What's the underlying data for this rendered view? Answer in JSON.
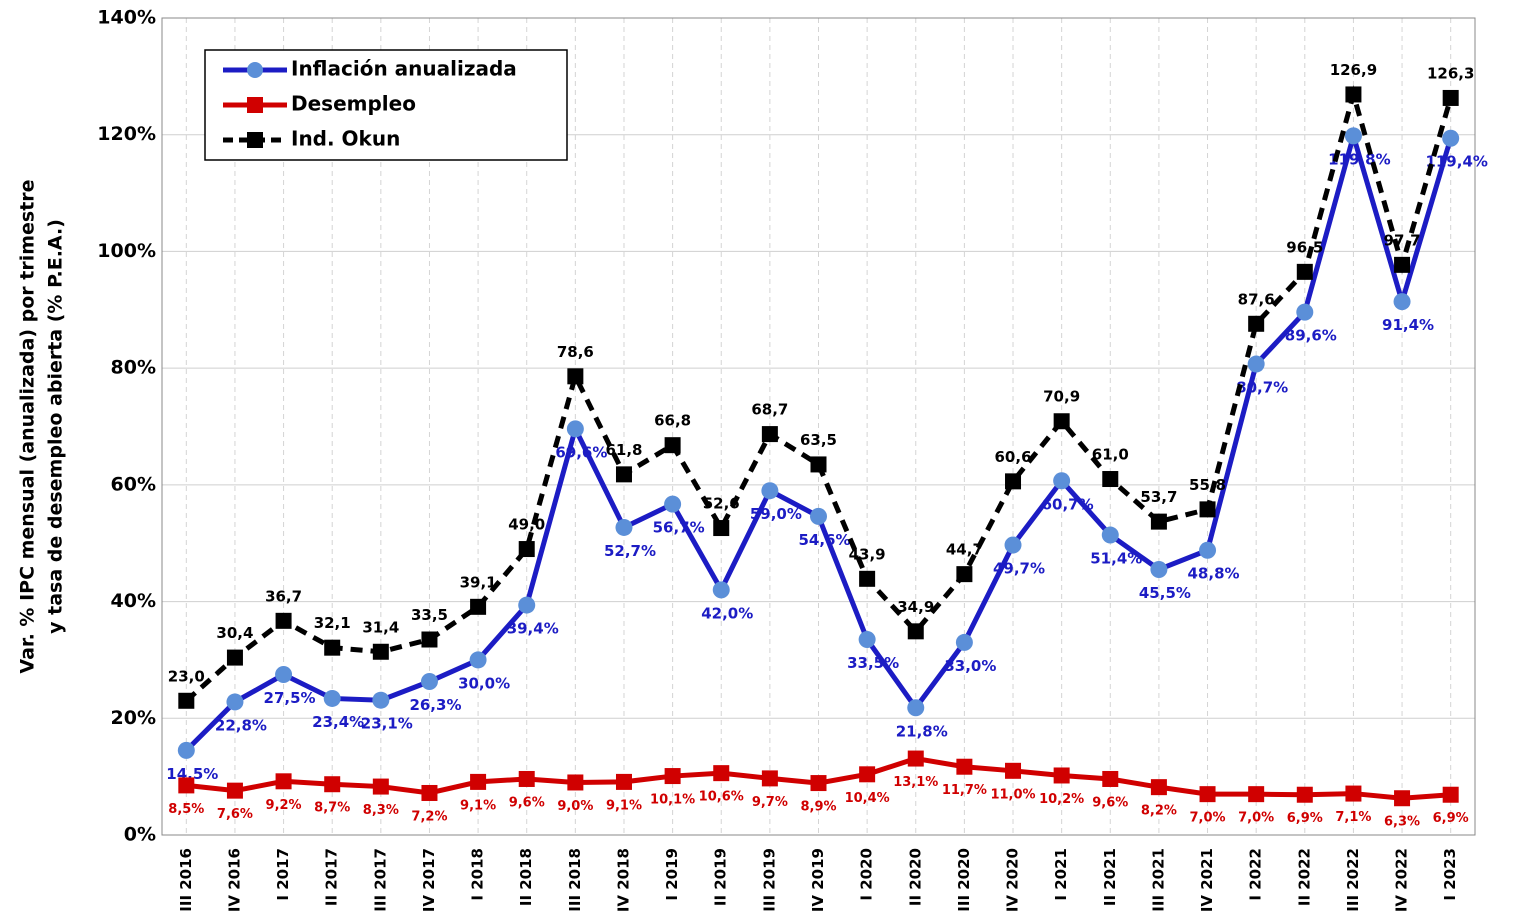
{
  "chart_data": {
    "type": "line",
    "y_label": [
      "Var. % IPC mensual (anualizada) por trimestre",
      "y tasa de desempleo abierta (% P.E.A.)"
    ],
    "categories": [
      "III 2016",
      "IV 2016",
      "I 2017",
      "II 2017",
      "III 2017",
      "IV 2017",
      "I 2018",
      "II 2018",
      "III 2018",
      "IV 2018",
      "I 2019",
      "II 2019",
      "III 2019",
      "IV 2019",
      "I 2020",
      "II 2020",
      "III 2020",
      "IV 2020",
      "I 2021",
      "II 2021",
      "III 2021",
      "IV 2021",
      "I 2022",
      "II 2022",
      "III 2022",
      "IV 2022",
      "I 2023"
    ],
    "series": [
      {
        "name": "Inflación anualizada",
        "color": "#1c1cc4",
        "marker_color": "#5b8fd8",
        "marker": "circle",
        "dashed": false,
        "label_position": "below",
        "values": [
          14.5,
          22.8,
          27.5,
          23.4,
          23.1,
          26.3,
          30.0,
          39.4,
          69.6,
          52.7,
          56.7,
          42.0,
          59.0,
          54.6,
          33.5,
          21.8,
          33.0,
          49.7,
          60.7,
          51.4,
          45.5,
          48.8,
          80.7,
          89.6,
          119.8,
          91.4,
          119.4
        ],
        "value_labels": [
          "14,5%",
          "22,8%",
          "27,5%",
          "23,4%",
          "23,1%",
          "26,3%",
          "30,0%",
          "39,4%",
          "69,6%",
          "52,7%",
          "56,7%",
          "42,0%",
          "59,0%",
          "54,6%",
          "33,5%",
          "21,8%",
          "33,0%",
          "49,7%",
          "60,7%",
          "51,4%",
          "45,5%",
          "48,8%",
          "80,7%",
          "89,6%",
          "119,8%",
          "91,4%",
          "119,4%"
        ]
      },
      {
        "name": "Desempleo",
        "color": "#d00000",
        "marker_color": "#d00000",
        "marker": "square",
        "dashed": false,
        "label_position": "below",
        "values": [
          8.5,
          7.6,
          9.2,
          8.7,
          8.3,
          7.2,
          9.1,
          9.6,
          9.0,
          9.1,
          10.1,
          10.6,
          9.7,
          8.9,
          10.4,
          13.1,
          11.7,
          11.0,
          10.2,
          9.6,
          8.2,
          7.0,
          7.0,
          6.9,
          7.1,
          6.3,
          6.9
        ],
        "value_labels": [
          "8,5%",
          "7,6%",
          "9,2%",
          "8,7%",
          "8,3%",
          "7,2%",
          "9,1%",
          "9,6%",
          "9,0%",
          "9,1%",
          "10,1%",
          "10,6%",
          "9,7%",
          "8,9%",
          "10,4%",
          "13,1%",
          "11,7%",
          "11,0%",
          "10,2%",
          "9,6%",
          "8,2%",
          "7,0%",
          "7,0%",
          "6,9%",
          "7,1%",
          "6,3%",
          "6,9%"
        ]
      },
      {
        "name": "Ind. Okun",
        "color": "#000000",
        "marker_color": "#000000",
        "marker": "square",
        "dashed": true,
        "label_position": "above",
        "values": [
          23.0,
          30.4,
          36.7,
          32.1,
          31.4,
          33.5,
          39.1,
          49.0,
          78.6,
          61.8,
          66.8,
          52.6,
          68.7,
          63.5,
          43.9,
          34.9,
          44.7,
          60.6,
          70.9,
          61.0,
          53.7,
          55.8,
          87.6,
          96.5,
          126.9,
          97.7,
          126.3
        ],
        "value_labels": [
          "23,0",
          "30,4",
          "36,7",
          "32,1",
          "31,4",
          "33,5",
          "39,1",
          "49,0",
          "78,6",
          "61,8",
          "66,8",
          "52,6",
          "68,7",
          "63,5",
          "43,9",
          "34,9",
          "44,7",
          "60,6",
          "70,9",
          "61,0",
          "53,7",
          "55,8",
          "87,6",
          "96,5",
          "126,9",
          "97,7",
          "126,3"
        ]
      }
    ],
    "ylim": [
      0,
      140
    ],
    "yticks": [
      {
        "value": 0,
        "label": "0%"
      },
      {
        "value": 20,
        "label": "20%"
      },
      {
        "value": 40,
        "label": "40%"
      },
      {
        "value": 60,
        "label": "60%"
      },
      {
        "value": 80,
        "label": "80%"
      },
      {
        "value": 100,
        "label": "100%"
      },
      {
        "value": 120,
        "label": "120%"
      },
      {
        "value": 140,
        "label": "140%"
      }
    ],
    "grid": true,
    "legend": "top-left"
  }
}
